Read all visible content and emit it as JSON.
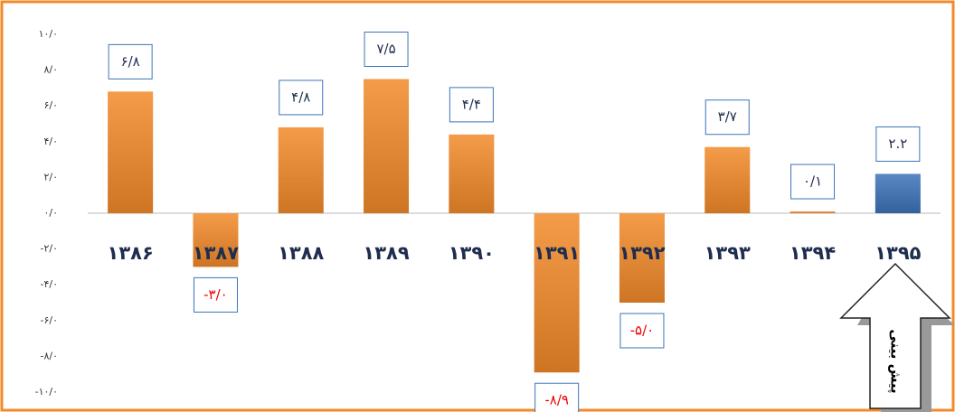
{
  "chart_data": {
    "type": "bar",
    "categories": [
      "۱۳۸۶",
      "۱۳۸۷",
      "۱۳۸۸",
      "۱۳۸۹",
      "۱۳۹۰",
      "۱۳۹۱",
      "۱۳۹۲",
      "۱۳۹۳",
      "۱۳۹۴",
      "۱۳۹۵"
    ],
    "values": [
      6.8,
      -3.0,
      4.8,
      7.5,
      4.4,
      -8.9,
      -5.0,
      3.7,
      0.1,
      2.2
    ],
    "value_labels": [
      "۶/۸",
      "-۳/۰",
      "۴/۸",
      "۷/۵",
      "۴/۴",
      "-۸/۹",
      "-۵/۰",
      "۳/۷",
      "۰/۱",
      "۲.۲"
    ],
    "colors": [
      "#f28a2a",
      "#f28a2a",
      "#f28a2a",
      "#f28a2a",
      "#f28a2a",
      "#f28a2a",
      "#f28a2a",
      "#f28a2a",
      "#f28a2a",
      "#3c73b8"
    ],
    "ylim": [
      -10,
      10
    ],
    "yticks": [
      {
        "value": 10,
        "label": "۱۰/۰"
      },
      {
        "value": 8,
        "label": "۸/۰"
      },
      {
        "value": 6,
        "label": "۶/۰"
      },
      {
        "value": 4,
        "label": "۴/۰"
      },
      {
        "value": 2,
        "label": "۲/۰"
      },
      {
        "value": 0,
        "label": "۰/۰"
      },
      {
        "value": -2,
        "label": "-۲/۰"
      },
      {
        "value": -4,
        "label": "-۴/۰"
      },
      {
        "value": -6,
        "label": "-۶/۰"
      },
      {
        "value": -8,
        "label": "-۸/۰"
      },
      {
        "value": -10,
        "label": "-۱۰/۰"
      }
    ],
    "grid": false,
    "annotation": "پیش بینی"
  }
}
